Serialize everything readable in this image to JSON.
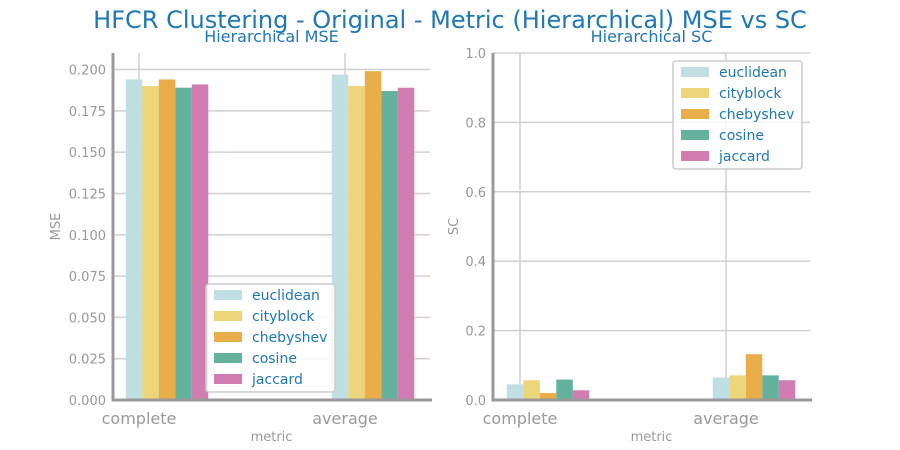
{
  "title": "HFCR Clustering - Original - Metric (Hierarchical) MSE vs SC",
  "colors": {
    "euclidean": "#bfdfe3",
    "cityblock": "#edd57a",
    "chebyshev": "#e9ad4a",
    "cosine": "#64b29e",
    "jaccard": "#d27db2"
  },
  "chart_data": [
    {
      "type": "bar",
      "title": "Hierarchical MSE",
      "xlabel": "metric",
      "ylabel": "MSE",
      "categories": [
        "complete",
        "average"
      ],
      "ylim": [
        0,
        0.21
      ],
      "yticks": [
        "0.000",
        "0.025",
        "0.050",
        "0.075",
        "0.100",
        "0.125",
        "0.150",
        "0.175",
        "0.200"
      ],
      "legend_position": "lower-right",
      "series": [
        {
          "name": "euclidean",
          "values": [
            0.194,
            0.197
          ]
        },
        {
          "name": "cityblock",
          "values": [
            0.19,
            0.19
          ]
        },
        {
          "name": "chebyshev",
          "values": [
            0.194,
            0.199
          ]
        },
        {
          "name": "cosine",
          "values": [
            0.189,
            0.187
          ]
        },
        {
          "name": "jaccard",
          "values": [
            0.191,
            0.189
          ]
        }
      ]
    },
    {
      "type": "bar",
      "title": "Hierarchical SC",
      "xlabel": "metric",
      "ylabel": "SC",
      "categories": [
        "complete",
        "average"
      ],
      "ylim": [
        0,
        1.0
      ],
      "yticks": [
        "0.0",
        "0.2",
        "0.4",
        "0.6",
        "0.8",
        "1.0"
      ],
      "legend_position": "upper-right",
      "series": [
        {
          "name": "euclidean",
          "values": [
            0.045,
            0.065
          ]
        },
        {
          "name": "cityblock",
          "values": [
            0.057,
            0.071
          ]
        },
        {
          "name": "chebyshev",
          "values": [
            0.02,
            0.132
          ]
        },
        {
          "name": "cosine",
          "values": [
            0.059,
            0.071
          ]
        },
        {
          "name": "jaccard",
          "values": [
            0.028,
            0.057
          ]
        }
      ]
    }
  ]
}
